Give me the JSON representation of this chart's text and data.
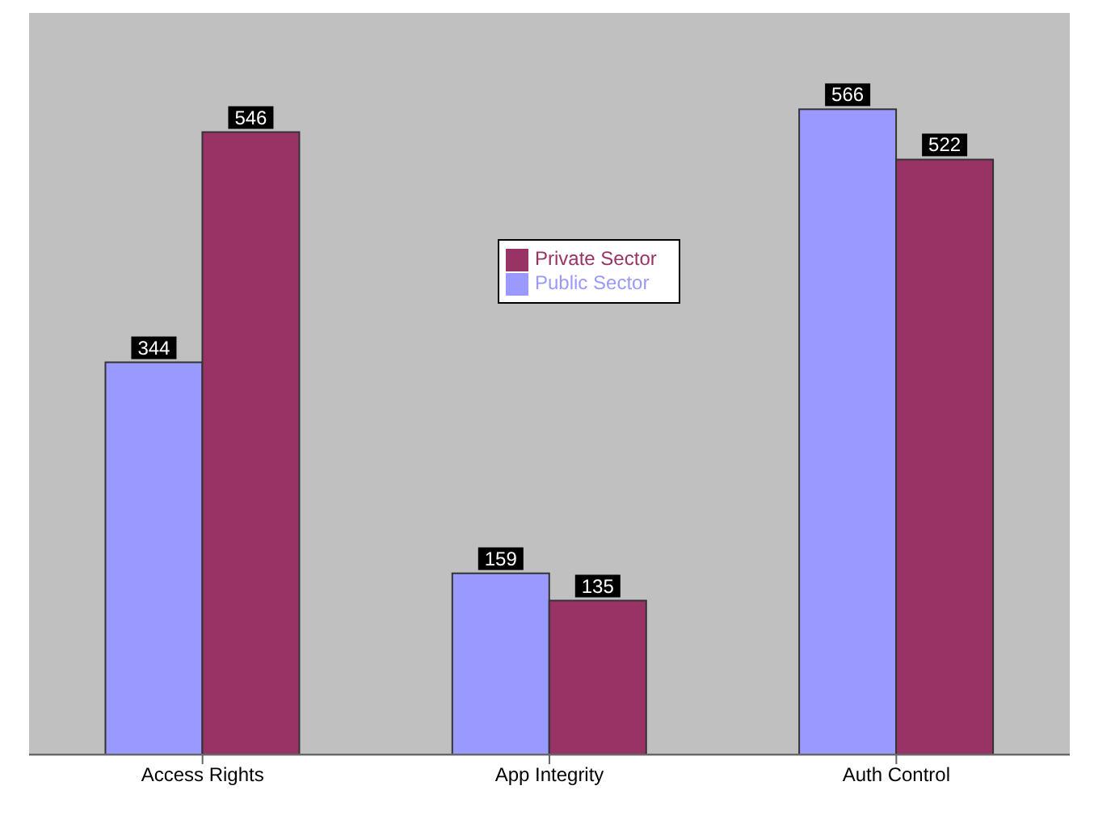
{
  "chart_data": {
    "type": "bar",
    "categories": [
      "Access Rights",
      "App Integrity",
      "Auth Control"
    ],
    "series": [
      {
        "name": "Public Sector",
        "color": "#9999ff",
        "values": [
          344,
          159,
          566
        ]
      },
      {
        "name": "Private Sector",
        "color": "#993366",
        "values": [
          546,
          135,
          522
        ]
      }
    ],
    "data_labels": true,
    "legend": "top",
    "grid": false
  }
}
